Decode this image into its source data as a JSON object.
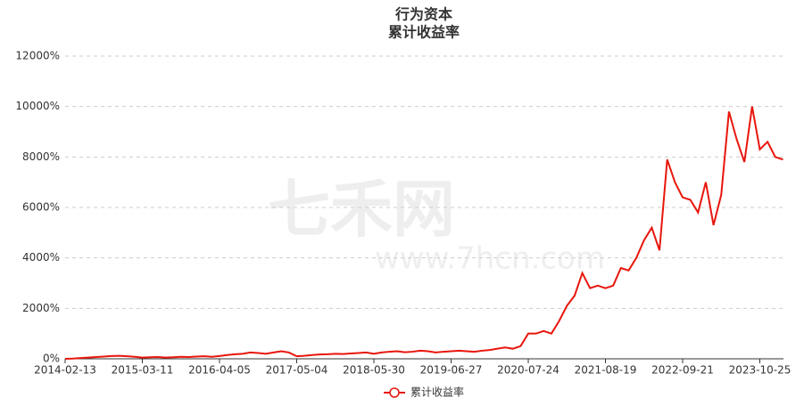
{
  "chart_data": {
    "type": "line",
    "title": "行为资本",
    "subtitle": "累计收益率",
    "watermark": "七禾网",
    "watermark_url": "www.7hcn.com",
    "categories": [
      "2014-02-13",
      null,
      null,
      null,
      null,
      null,
      null,
      null,
      null,
      null,
      "2015-03-11",
      null,
      null,
      null,
      null,
      null,
      null,
      null,
      null,
      null,
      "2016-04-05",
      null,
      null,
      null,
      null,
      null,
      null,
      null,
      null,
      null,
      "2017-05-04",
      null,
      null,
      null,
      null,
      null,
      null,
      null,
      null,
      null,
      "2018-05-30",
      null,
      null,
      null,
      null,
      null,
      null,
      null,
      null,
      null,
      "2019-06-27",
      null,
      null,
      null,
      null,
      null,
      null,
      null,
      null,
      null,
      "2020-07-24",
      null,
      null,
      null,
      null,
      null,
      null,
      null,
      null,
      null,
      "2021-08-19",
      null,
      null,
      null,
      null,
      null,
      null,
      null,
      null,
      null,
      "2022-09-21",
      null,
      null,
      null,
      null,
      null,
      null,
      null,
      null,
      null,
      "2023-10-25",
      null,
      null,
      null
    ],
    "series": [
      {
        "name": "累计收益率",
        "color": "#e8160c",
        "values": [
          0,
          10,
          30,
          50,
          70,
          90,
          110,
          120,
          100,
          80,
          50,
          60,
          70,
          50,
          60,
          80,
          70,
          90,
          100,
          80,
          110,
          150,
          180,
          200,
          250,
          230,
          200,
          250,
          300,
          250,
          100,
          120,
          150,
          170,
          180,
          200,
          190,
          210,
          230,
          250,
          200,
          250,
          280,
          300,
          260,
          280,
          320,
          300,
          250,
          280,
          300,
          320,
          300,
          280,
          320,
          350,
          400,
          450,
          400,
          500,
          1000,
          1000,
          1100,
          1000,
          1500,
          2100,
          2500,
          3400,
          2800,
          2900,
          2800,
          2900,
          3600,
          3500,
          4000,
          4700,
          5200,
          4300,
          7900,
          7000,
          6400,
          6300,
          5800,
          7000,
          5300,
          6500,
          9800,
          8700,
          7800,
          10000,
          8300,
          8600,
          8000,
          7900
        ]
      }
    ],
    "ylim": [
      0,
      12000
    ],
    "yticks": [
      {
        "value": 0,
        "label": "0%"
      },
      {
        "value": 2000,
        "label": "2000%"
      },
      {
        "value": 4000,
        "label": "4000%"
      },
      {
        "value": 6000,
        "label": "6000%"
      },
      {
        "value": 8000,
        "label": "8000%"
      },
      {
        "value": 10000,
        "label": "10000%"
      },
      {
        "value": 12000,
        "label": "12000%"
      }
    ],
    "grid": true
  }
}
